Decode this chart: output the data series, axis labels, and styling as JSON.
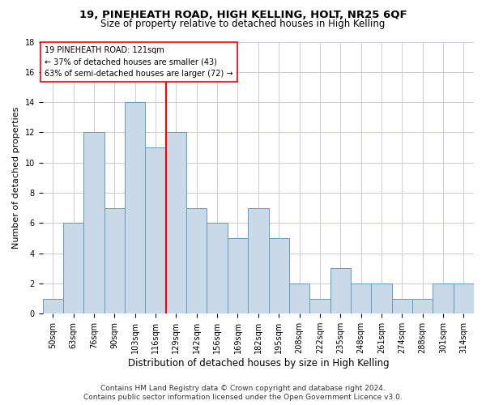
{
  "title1": "19, PINEHEATH ROAD, HIGH KELLING, HOLT, NR25 6QF",
  "title2": "Size of property relative to detached houses in High Kelling",
  "xlabel": "Distribution of detached houses by size in High Kelling",
  "ylabel": "Number of detached properties",
  "footnote1": "Contains HM Land Registry data © Crown copyright and database right 2024.",
  "footnote2": "Contains public sector information licensed under the Open Government Licence v3.0.",
  "bar_labels": [
    "50sqm",
    "63sqm",
    "76sqm",
    "90sqm",
    "103sqm",
    "116sqm",
    "129sqm",
    "142sqm",
    "156sqm",
    "169sqm",
    "182sqm",
    "195sqm",
    "208sqm",
    "222sqm",
    "235sqm",
    "248sqm",
    "261sqm",
    "274sqm",
    "288sqm",
    "301sqm",
    "314sqm"
  ],
  "bar_values": [
    1,
    6,
    12,
    7,
    14,
    11,
    12,
    7,
    6,
    5,
    7,
    5,
    2,
    1,
    3,
    2,
    2,
    1,
    1,
    2,
    2
  ],
  "bar_color": "#c9d9e8",
  "bar_edge_color": "#6699bb",
  "grid_color": "#ccccdd",
  "vline_x_index": 5.5,
  "vline_color": "red",
  "annotation_title": "19 PINEHEATH ROAD: 121sqm",
  "annotation_line1": "← 37% of detached houses are smaller (43)",
  "annotation_line2": "63% of semi-detached houses are larger (72) →",
  "annotation_box_color": "red",
  "ylim": [
    0,
    18
  ],
  "title_fontsize": 9.5,
  "subtitle_fontsize": 8.5,
  "xlabel_fontsize": 8.5,
  "ylabel_fontsize": 8,
  "tick_fontsize": 7,
  "annot_fontsize": 7,
  "footnote_fontsize": 6.5
}
